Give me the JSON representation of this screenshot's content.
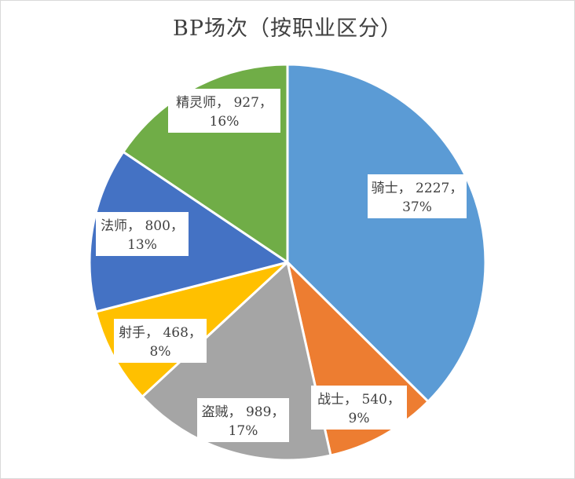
{
  "chart_data": {
    "type": "pie",
    "title": "BP场次（按职业区分）",
    "slices": [
      {
        "label": "骑士",
        "value": 2227,
        "percent": "37%",
        "color": "#5B9BD5"
      },
      {
        "label": "战士",
        "value": 540,
        "percent": "9%",
        "color": "#ED7D31"
      },
      {
        "label": "盗贼",
        "value": 989,
        "percent": "17%",
        "color": "#A5A5A5"
      },
      {
        "label": "射手",
        "value": 468,
        "percent": "8%",
        "color": "#FFC000"
      },
      {
        "label": "法师",
        "value": 800,
        "percent": "13%",
        "color": "#4472C4"
      },
      {
        "label": "精灵师",
        "value": 927,
        "percent": "16%",
        "color": "#70AD47"
      }
    ]
  }
}
